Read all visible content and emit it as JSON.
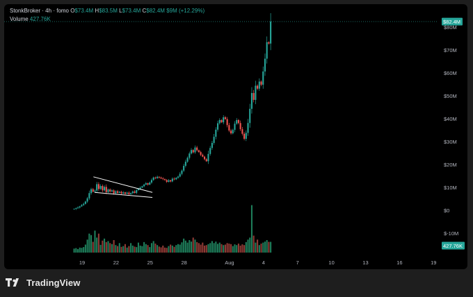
{
  "header": {
    "symbol": "StonkBroker",
    "sep1": "·",
    "interval": "4h",
    "sep2": "·",
    "source": "fomo",
    "o_label": "O",
    "o_value": "$73.4M",
    "h_label": "H",
    "h_value": "$83.5M",
    "l_label": "L",
    "l_value": "$73.4M",
    "c_label": "C",
    "c_value": "$82.4M",
    "change": "$9M (+12.29%)",
    "volume_label": "Volume",
    "volume_value": "427.76K"
  },
  "brand": {
    "name": "TradingView",
    "icon": "tradingview-logo-icon"
  },
  "colors": {
    "up": "#26a69a",
    "down": "#ef5350",
    "vol_up": "#1e7d5a",
    "vol_down": "#8f3a35",
    "tag_bg": "#26a69a"
  },
  "chart_data": {
    "type": "candlestick",
    "title": "",
    "y_axis": {
      "unit": "$",
      "ticks": [
        "$80M",
        "$70M",
        "$60M",
        "$50M",
        "$40M",
        "$30M",
        "$20M",
        "$10M",
        "$0",
        "$-10M"
      ],
      "tick_values": [
        80,
        70,
        60,
        50,
        40,
        30,
        20,
        10,
        0,
        -10
      ],
      "range_millions": [
        -14,
        85
      ]
    },
    "x_axis": {
      "ticks": [
        "19",
        "22",
        "25",
        "28",
        "Aug",
        "4",
        "7",
        "10",
        "13",
        "16",
        "19"
      ],
      "tick_offsets_days": [
        0,
        3,
        6,
        9,
        13,
        16,
        19,
        22,
        25,
        28,
        31
      ]
    },
    "last_price_label": "$82.4M",
    "volume_label": "427.76K",
    "annotation": "falling wedge drawn near $7M–$15M",
    "candles_per_day": 6,
    "start_day_offset": -0.7,
    "candles_close_millions": [
      0.6,
      0.9,
      1.2,
      1.7,
      2.3,
      2.8,
      3.8,
      5.2,
      7.5,
      9.2,
      8.1,
      8.6,
      11.4,
      9.3,
      10.6,
      8.7,
      10.2,
      7.9,
      9.1,
      8.2,
      8.7,
      7.4,
      8.3,
      7.6,
      8.1,
      7.3,
      7.8,
      7.2,
      7.7,
      7.0,
      7.5,
      8.2,
      7.6,
      8.8,
      9.4,
      9.9,
      10.5,
      11.2,
      11.8,
      11.2,
      12.1,
      13.2,
      14.3,
      14.0,
      14.6,
      14.3,
      13.9,
      13.6,
      13.2,
      12.4,
      13.1,
      12.6,
      13.8,
      13.5,
      14.2,
      14.7,
      15.9,
      17.3,
      19.4,
      21.2,
      22.9,
      24.8,
      26.3,
      25.3,
      27.4,
      26.2,
      25.4,
      24.2,
      23.4,
      22.3,
      21.4,
      24.6,
      27.2,
      29.4,
      32.1,
      35.2,
      38.0,
      39.4,
      38.4,
      40.6,
      39.8,
      37.2,
      34.8,
      33.6,
      35.1,
      37.8,
      39.4,
      38.1,
      35.4,
      33.4,
      31.2,
      33.8,
      38.1,
      44.3,
      51.2,
      48.2,
      54.4,
      53.1,
      56.2,
      54.8,
      60.6,
      66.2,
      73.4,
      72.8,
      82.4
    ],
    "volumes_k": [
      160,
      180,
      140,
      200,
      190,
      220,
      320,
      520,
      760,
      700,
      430,
      880,
      600,
      760,
      310,
      480,
      560,
      420,
      460,
      380,
      340,
      500,
      300,
      260,
      380,
      230,
      260,
      340,
      200,
      260,
      380,
      280,
      240,
      220,
      400,
      280,
      260,
      420,
      340,
      300,
      220,
      380,
      460,
      360,
      300,
      240,
      210,
      280,
      200,
      190,
      260,
      320,
      280,
      230,
      300,
      340,
      320,
      410,
      560,
      480,
      400,
      500,
      440,
      600,
      520,
      420,
      380,
      320,
      400,
      280,
      300,
      340,
      380,
      460,
      380,
      440,
      350,
      400,
      340,
      300,
      320,
      380,
      360,
      340,
      260,
      330,
      300,
      360,
      280,
      330,
      300,
      420,
      520,
      600,
      1900,
      680,
      400,
      520,
      300,
      360,
      400,
      440,
      500,
      430,
      430
    ]
  }
}
